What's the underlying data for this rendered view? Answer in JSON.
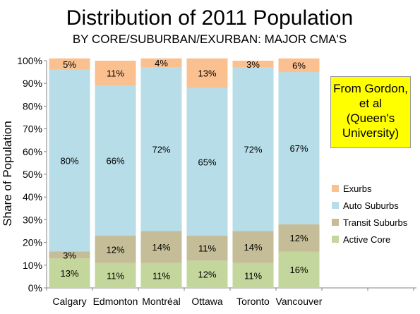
{
  "title": "Distribution of 2011 Population",
  "subtitle": "BY CORE/SUBURBAN/EXURBAN: MAJOR CMA'S",
  "note": {
    "lines": [
      "From Gordon,",
      "et al",
      "(Queen's",
      "University)"
    ]
  },
  "colors": {
    "Active Core": "#c3d69b",
    "Transit Suburbs": "#c4bd97",
    "Auto Suburbs": "#b7dde8",
    "Exurbs": "#fac090",
    "note_bg": "#ffff00"
  },
  "chart_data": {
    "type": "bar",
    "stacked": true,
    "categories": [
      "Calgary",
      "Edmonton",
      "Montréal",
      "Ottawa",
      "Toronto",
      "Vancouver"
    ],
    "series": [
      {
        "name": "Active Core",
        "values": [
          13,
          11,
          11,
          12,
          11,
          16
        ],
        "labels": [
          "13%",
          "11%",
          "11%",
          "12%",
          "11%",
          "16%"
        ]
      },
      {
        "name": "Transit Suburbs",
        "values": [
          3,
          12,
          14,
          11,
          14,
          12
        ],
        "labels": [
          "3%",
          "12%",
          "14%",
          "11%",
          "14%",
          "12%"
        ]
      },
      {
        "name": "Auto Suburbs",
        "values": [
          80,
          66,
          72,
          65,
          72,
          67
        ],
        "labels": [
          "80%",
          "66%",
          "72%",
          "65%",
          "72%",
          "67%"
        ]
      },
      {
        "name": "Exurbs",
        "values": [
          5,
          11,
          4,
          13,
          3,
          6
        ],
        "labels": [
          "5%",
          "11%",
          "4%",
          "13%",
          "3%",
          "6%"
        ]
      }
    ],
    "ylabel": "Share of Population",
    "xlabel": "",
    "ylim": [
      0,
      100
    ],
    "yticks": [
      "0%",
      "10%",
      "20%",
      "30%",
      "40%",
      "50%",
      "60%",
      "70%",
      "80%",
      "90%",
      "100%"
    ],
    "legend": [
      "Exurbs",
      "Auto Suburbs",
      "Transit Suburbs",
      "Active Core"
    ],
    "legend_position": "right",
    "grid": false
  }
}
